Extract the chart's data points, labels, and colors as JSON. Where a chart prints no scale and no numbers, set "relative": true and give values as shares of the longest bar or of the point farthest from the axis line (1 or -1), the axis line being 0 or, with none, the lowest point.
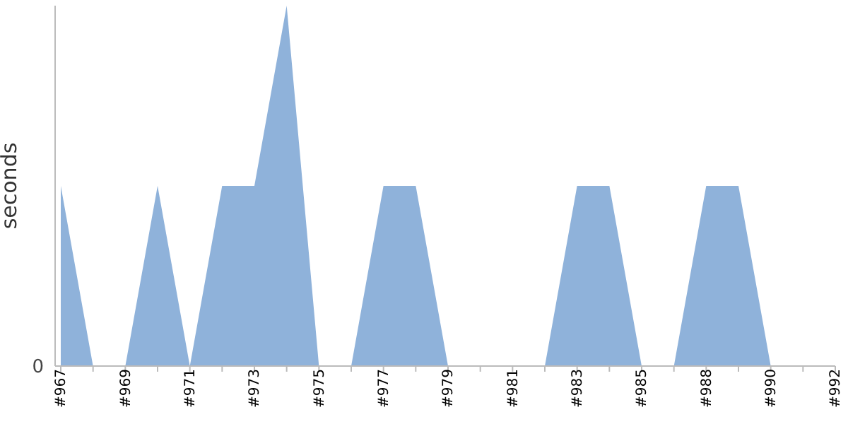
{
  "chart_data": {
    "type": "area",
    "ylabel": "seconds",
    "relative": true,
    "annotations": [
      "0"
    ],
    "color": "#8fb2da",
    "categories": [
      "#967",
      null,
      "#969",
      null,
      "#971",
      null,
      "#973",
      null,
      "#975",
      null,
      "#977",
      null,
      "#979",
      null,
      "#981",
      null,
      "#983",
      null,
      "#985",
      null,
      "#988",
      null,
      "#990",
      null,
      "#992"
    ],
    "values": [
      0.5,
      0,
      0,
      0.5,
      0,
      0.5,
      0.5,
      1,
      0,
      0,
      0.5,
      0.5,
      0,
      0,
      0,
      0,
      0.5,
      0.5,
      0,
      0,
      0.5,
      0.5,
      0,
      0,
      0
    ]
  }
}
